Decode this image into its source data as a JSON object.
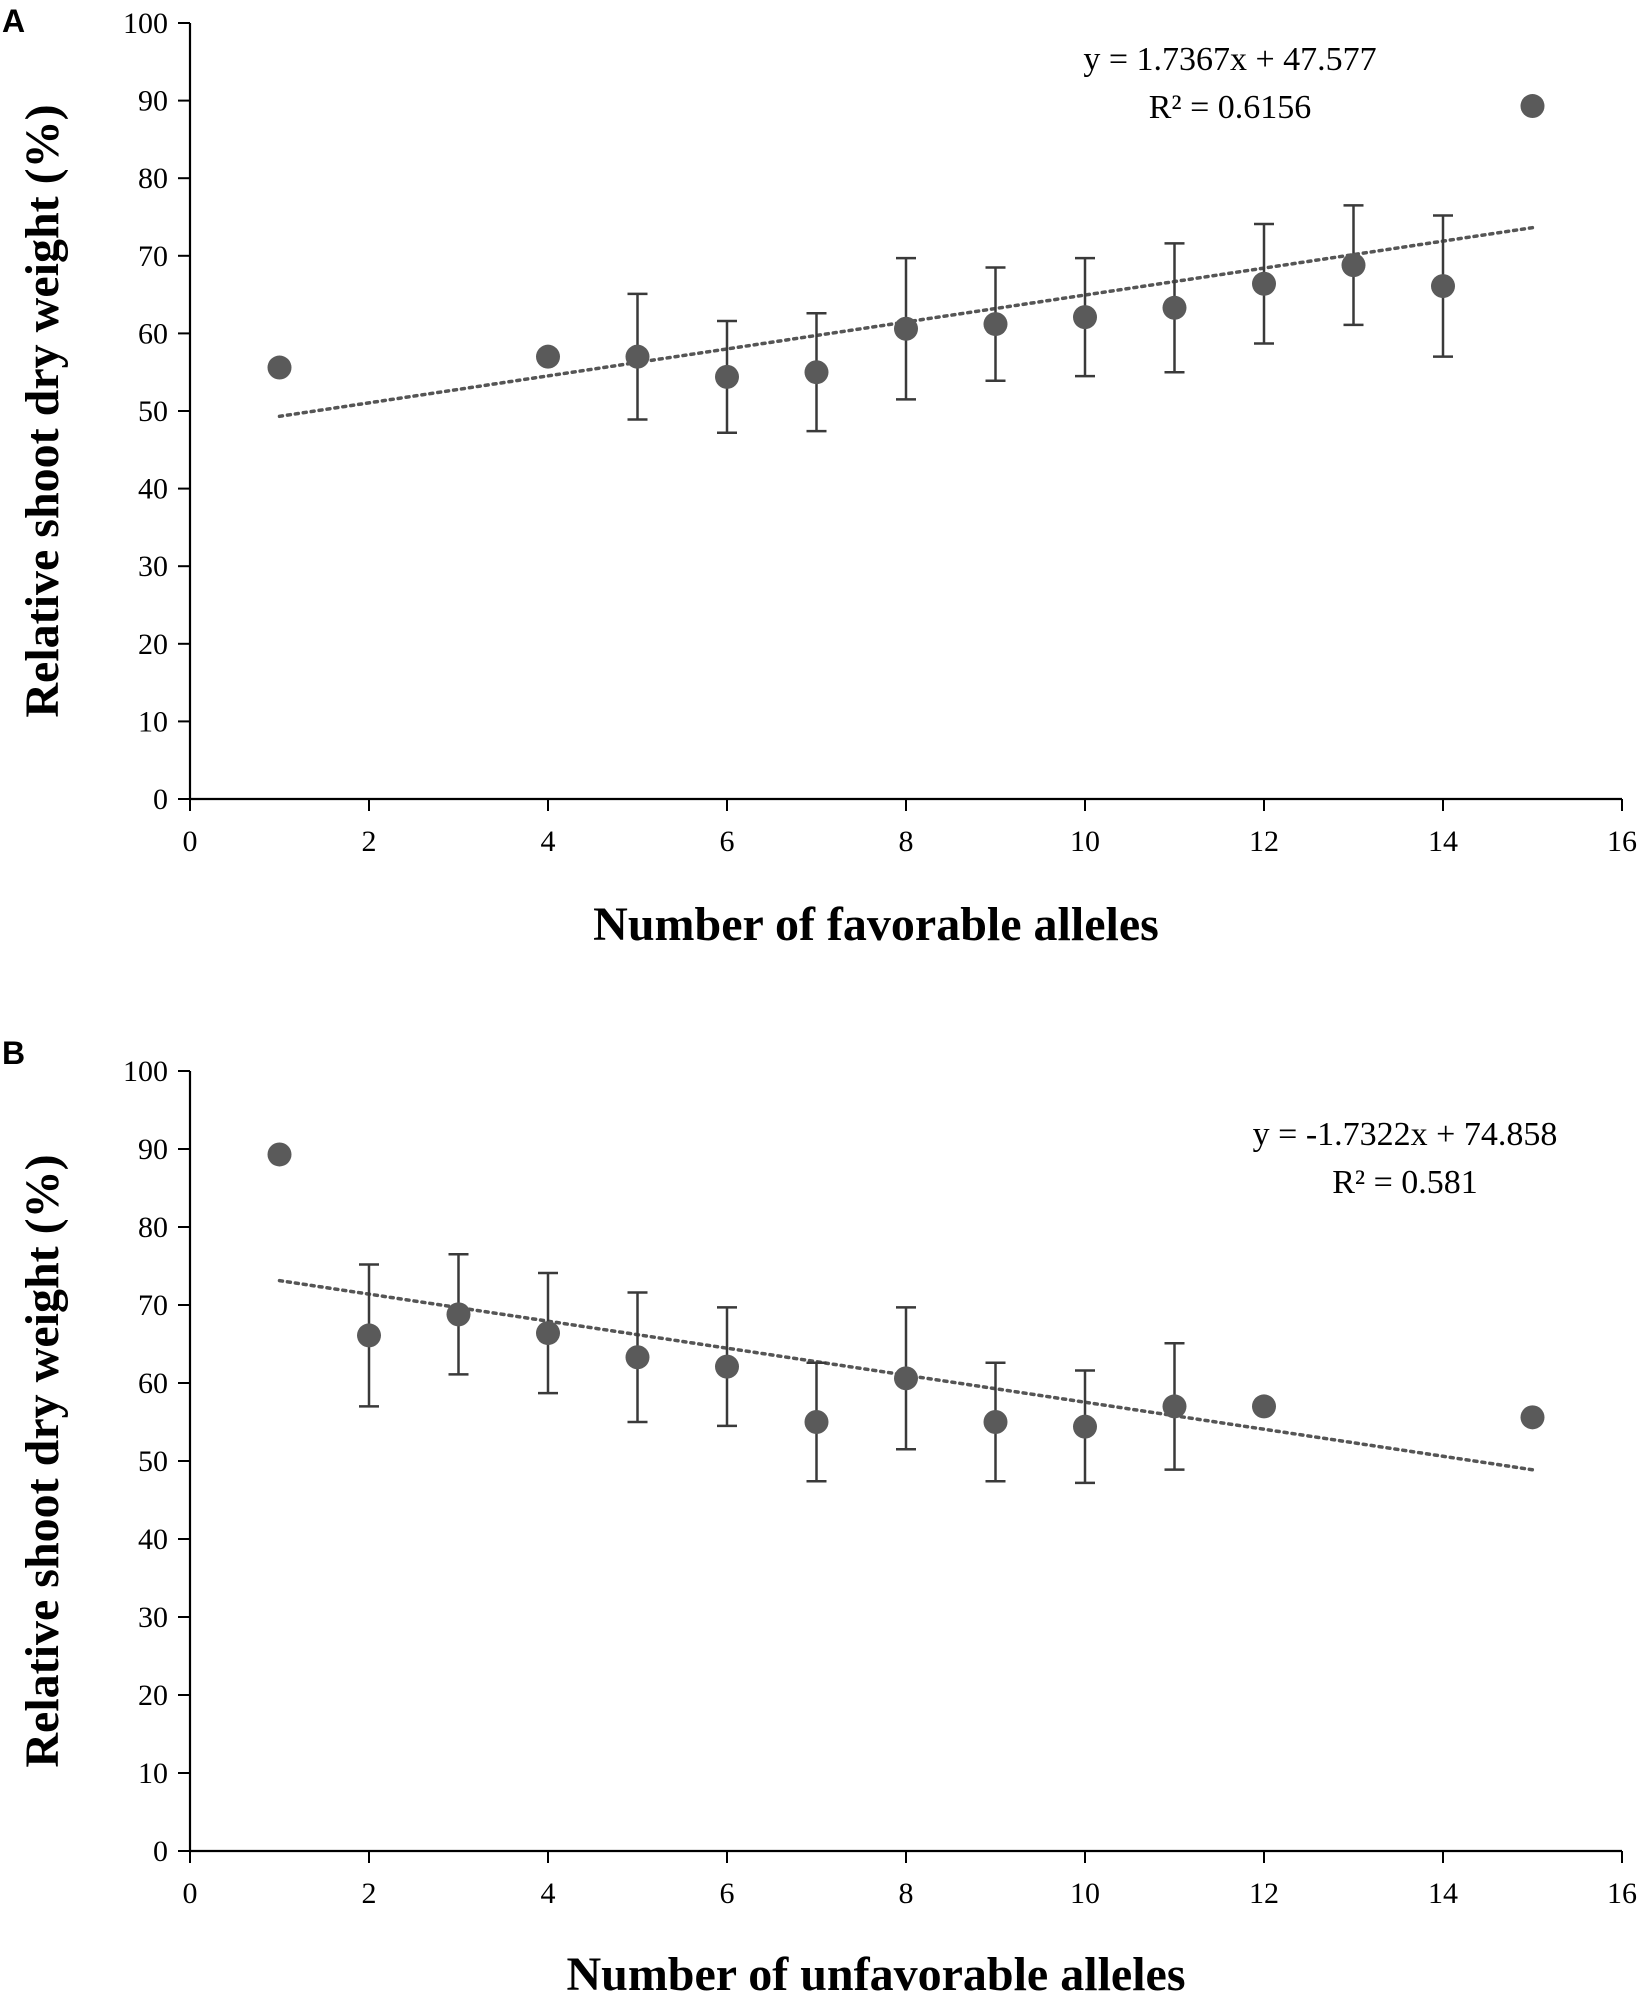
{
  "chart_data": [
    {
      "type": "scatter",
      "panel_label": "A",
      "xlabel": "Number of favorable alleles",
      "ylabel": "Relative shoot dry weight (%)",
      "xlim": [
        0,
        16
      ],
      "ylim": [
        0,
        100
      ],
      "x_ticks": [
        "0",
        "2",
        "4",
        "6",
        "8",
        "10",
        "12",
        "14",
        "16"
      ],
      "y_ticks": [
        "0",
        "10",
        "20",
        "30",
        "40",
        "50",
        "60",
        "70",
        "80",
        "90",
        "100"
      ],
      "trendline": {
        "style": "dotted",
        "slope": 1.7367,
        "intercept": 47.577,
        "x_range": [
          1,
          15
        ],
        "equation_label": "y = 1.7367x + 47.577",
        "r2_label": "R² = 0.6156"
      },
      "series": [
        {
          "name": "Relative shoot dry weight",
          "points": [
            {
              "x": 1,
              "y": 55.6,
              "err": null
            },
            {
              "x": 4,
              "y": 57.0,
              "err": null
            },
            {
              "x": 5,
              "y": 57.0,
              "err": 8.1
            },
            {
              "x": 6,
              "y": 54.4,
              "err": 7.2
            },
            {
              "x": 7,
              "y": 55.0,
              "err": 7.6
            },
            {
              "x": 8,
              "y": 60.6,
              "err": 9.1
            },
            {
              "x": 9,
              "y": 61.2,
              "err": 7.3
            },
            {
              "x": 10,
              "y": 62.1,
              "err": 7.6
            },
            {
              "x": 11,
              "y": 63.3,
              "err": 8.3
            },
            {
              "x": 12,
              "y": 66.4,
              "err": 7.7
            },
            {
              "x": 13,
              "y": 68.8,
              "err": 7.7
            },
            {
              "x": 14,
              "y": 66.1,
              "err": 9.1
            },
            {
              "x": 15,
              "y": 89.3,
              "err": null
            }
          ]
        }
      ]
    },
    {
      "type": "scatter",
      "panel_label": "B",
      "xlabel": "Number of unfavorable alleles",
      "ylabel": "Relative shoot dry weight (%)",
      "xlim": [
        0,
        16
      ],
      "ylim": [
        0,
        100
      ],
      "x_ticks": [
        "0",
        "2",
        "4",
        "6",
        "8",
        "10",
        "12",
        "14",
        "16"
      ],
      "y_ticks": [
        "0",
        "10",
        "20",
        "30",
        "40",
        "50",
        "60",
        "70",
        "80",
        "90",
        "100"
      ],
      "trendline": {
        "style": "dotted",
        "slope": -1.7322,
        "intercept": 74.858,
        "x_range": [
          1,
          15
        ],
        "equation_label": "y = -1.7322x + 74.858",
        "r2_label": "R² = 0.581"
      },
      "series": [
        {
          "name": "Relative shoot dry weight",
          "points": [
            {
              "x": 1,
              "y": 89.3,
              "err": null
            },
            {
              "x": 2,
              "y": 66.1,
              "err": 9.1
            },
            {
              "x": 3,
              "y": 68.8,
              "err": 7.7
            },
            {
              "x": 4,
              "y": 66.4,
              "err": 7.7
            },
            {
              "x": 5,
              "y": 63.3,
              "err": 8.3
            },
            {
              "x": 6,
              "y": 62.1,
              "err": 7.6
            },
            {
              "x": 7,
              "y": 55.0,
              "err": 7.6
            },
            {
              "x": 8,
              "y": 60.6,
              "err": 9.1
            },
            {
              "x": 9,
              "y": 55.0,
              "err": 7.6
            },
            {
              "x": 10,
              "y": 54.4,
              "err": 7.2
            },
            {
              "x": 11,
              "y": 57.0,
              "err": 8.1
            },
            {
              "x": 12,
              "y": 57.0,
              "err": null
            },
            {
              "x": 15,
              "y": 55.6,
              "err": null
            }
          ]
        }
      ]
    }
  ],
  "colors": {
    "marker": "#5a5a5a",
    "error_bar": "#3a3a3a",
    "trendline": "#555555",
    "axis": "#000000",
    "background": "#ffffff"
  }
}
